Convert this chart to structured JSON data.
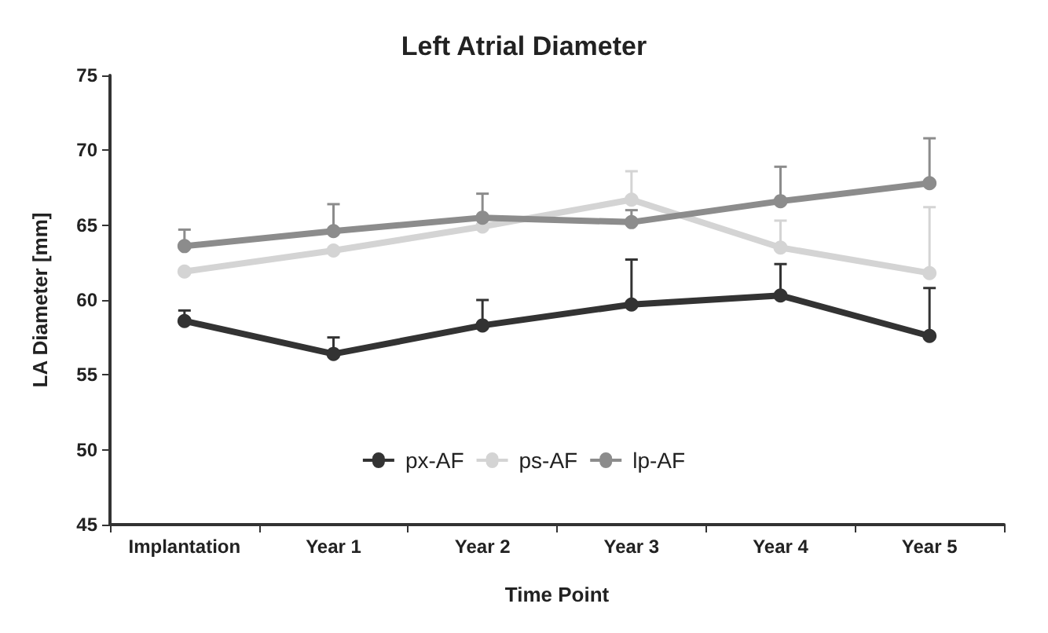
{
  "chart_data": {
    "type": "line",
    "title": "Left Atrial Diameter",
    "xlabel": "Time Point",
    "ylabel": "LA Diameter [mm]",
    "categories": [
      "Implantation",
      "Year 1",
      "Year 2",
      "Year 3",
      "Year 4",
      "Year 5"
    ],
    "series": [
      {
        "name": "px-AF",
        "color": "#333333",
        "values": [
          58.6,
          56.4,
          58.3,
          59.7,
          60.3,
          57.6
        ],
        "errors": [
          [
            58.6,
            59.3
          ],
          [
            56.4,
            57.5
          ],
          [
            58.3,
            60.0
          ],
          [
            59.7,
            62.7
          ],
          [
            60.3,
            62.4
          ],
          [
            57.6,
            60.8
          ]
        ]
      },
      {
        "name": "ps-AF",
        "color": "#d4d4d4",
        "values": [
          61.9,
          63.3,
          64.9,
          66.7,
          63.5,
          61.8
        ],
        "errors": [
          null,
          null,
          null,
          [
            66.7,
            68.6
          ],
          [
            63.5,
            65.3
          ],
          [
            61.8,
            66.2
          ]
        ]
      },
      {
        "name": "lp-AF",
        "color": "#8c8c8c",
        "values": [
          63.6,
          64.6,
          65.5,
          65.2,
          66.6,
          67.8
        ],
        "errors": [
          [
            63.6,
            64.7
          ],
          [
            64.6,
            66.4
          ],
          [
            65.5,
            67.1
          ],
          [
            65.2,
            66.0
          ],
          [
            66.6,
            68.9
          ],
          [
            67.8,
            70.8
          ]
        ]
      }
    ],
    "ylim": [
      45,
      75
    ],
    "yticks": [
      45,
      50,
      55,
      60,
      65,
      70,
      75
    ],
    "grid": false,
    "legend": "bottom",
    "marker": "circle",
    "line_style": "solid"
  }
}
